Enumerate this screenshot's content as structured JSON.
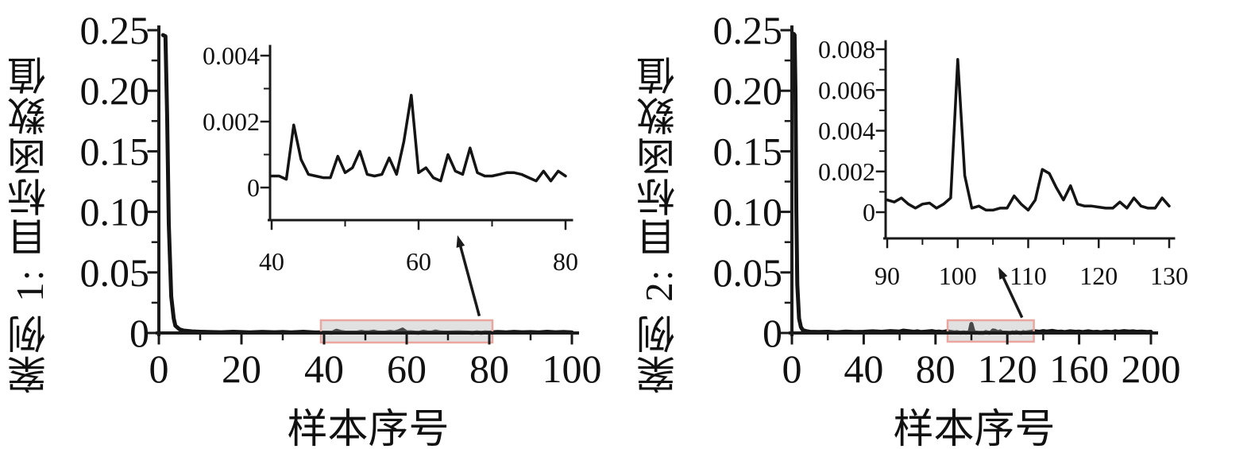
{
  "figure": {
    "background": "#ffffff",
    "curve_color": "#141414",
    "axis_color": "#1a1a1a",
    "highlight_fill_rgba": "rgba(168,168,168,0.35)",
    "highlight_border": "#eaa69f",
    "text_color": "#111111"
  },
  "chart_data": [
    {
      "id": "case1",
      "type": "line",
      "title": "",
      "ylabel": "案例 1: 目标函数值",
      "xlabel": "样本序号",
      "xlim": [
        0,
        100
      ],
      "ylim": [
        0,
        0.25
      ],
      "grid": false,
      "legend": null,
      "x_ticks": {
        "values": [
          0,
          20,
          40,
          60,
          80,
          100
        ],
        "labels": [
          "0",
          "20",
          "40",
          "60",
          "80",
          "100"
        ],
        "minor": [
          10,
          30,
          50,
          70,
          90
        ]
      },
      "y_ticks": {
        "values": [
          0,
          0.05,
          0.1,
          0.15,
          0.2,
          0.25
        ],
        "labels": [
          "0",
          "0.05",
          "0.10",
          "0.15",
          "0.20",
          "0.25"
        ],
        "minor": [
          0.025,
          0.075,
          0.125,
          0.175,
          0.225
        ]
      },
      "highlight_box": {
        "x_from": 40,
        "x_to": 80,
        "meaning": "region magnified in inset"
      },
      "zoom_arrow": {
        "from": "highlight-box",
        "to": "inset"
      },
      "series": [
        [
          1,
          0.246
        ],
        [
          1.6,
          0.245
        ],
        [
          2,
          0.18
        ],
        [
          2.4,
          0.09
        ],
        [
          3,
          0.03
        ],
        [
          3.6,
          0.012
        ],
        [
          4,
          0.006
        ],
        [
          5,
          0.003
        ],
        [
          6,
          0.002
        ],
        [
          8,
          0.0013
        ],
        [
          10,
          0.001
        ],
        [
          12,
          0.0008
        ],
        [
          15,
          0.0006
        ],
        [
          18,
          0.001
        ],
        [
          20,
          0.0007
        ],
        [
          22,
          0.0005
        ],
        [
          25,
          0.0009
        ],
        [
          28,
          0.0006
        ],
        [
          30,
          0.0008
        ],
        [
          32,
          0.0005
        ],
        [
          35,
          0.001
        ],
        [
          37,
          0.0006
        ],
        [
          38,
          0.0004
        ],
        [
          39,
          0.0005
        ],
        [
          40,
          0.00035
        ],
        [
          41,
          0.00035
        ],
        [
          42,
          0.00025
        ],
        [
          43,
          0.0019
        ],
        [
          44,
          0.00085
        ],
        [
          45,
          0.0004
        ],
        [
          46,
          0.00035
        ],
        [
          47,
          0.0003
        ],
        [
          48,
          0.0003
        ],
        [
          49,
          0.00095
        ],
        [
          50,
          0.00045
        ],
        [
          51,
          0.0006
        ],
        [
          52,
          0.0011
        ],
        [
          53,
          0.0004
        ],
        [
          54,
          0.00035
        ],
        [
          55,
          0.0004
        ],
        [
          56,
          0.0009
        ],
        [
          57,
          0.0004
        ],
        [
          58,
          0.0014
        ],
        [
          59,
          0.0028
        ],
        [
          60,
          0.00045
        ],
        [
          61,
          0.0006
        ],
        [
          62,
          0.0003
        ],
        [
          63,
          0.0002
        ],
        [
          64,
          0.001
        ],
        [
          65,
          0.0005
        ],
        [
          66,
          0.0004
        ],
        [
          67,
          0.0012
        ],
        [
          68,
          0.00045
        ],
        [
          69,
          0.00035
        ],
        [
          70,
          0.00035
        ],
        [
          71,
          0.0004
        ],
        [
          72,
          0.00045
        ],
        [
          73,
          0.00045
        ],
        [
          74,
          0.0004
        ],
        [
          75,
          0.0003
        ],
        [
          76,
          0.0002
        ],
        [
          77,
          0.0005
        ],
        [
          78,
          0.0002
        ],
        [
          79,
          0.0005
        ],
        [
          80,
          0.00035
        ],
        [
          82,
          0.0008
        ],
        [
          84,
          0.0005
        ],
        [
          86,
          0.0009
        ],
        [
          88,
          0.0006
        ],
        [
          90,
          0.0007
        ],
        [
          92,
          0.0005
        ],
        [
          94,
          0.001
        ],
        [
          96,
          0.0006
        ],
        [
          98,
          0.0008
        ],
        [
          100,
          0.0005
        ]
      ],
      "inset": {
        "xlim": [
          40,
          80
        ],
        "ylim": [
          0,
          0.004
        ],
        "x_ticks": {
          "values": [
            40,
            60,
            80
          ],
          "labels": [
            "40",
            "60",
            "80"
          ],
          "minor": [
            50,
            70
          ]
        },
        "y_ticks": {
          "values": [
            0,
            0.002,
            0.004
          ],
          "labels": [
            "0",
            "0.002",
            "0.004"
          ],
          "minor": [
            0.001,
            0.003
          ]
        },
        "series": [
          [
            40,
            0.00035
          ],
          [
            41,
            0.00035
          ],
          [
            42,
            0.00025
          ],
          [
            43,
            0.0019
          ],
          [
            44,
            0.00085
          ],
          [
            45,
            0.0004
          ],
          [
            46,
            0.00035
          ],
          [
            47,
            0.0003
          ],
          [
            48,
            0.0003
          ],
          [
            49,
            0.00095
          ],
          [
            50,
            0.00045
          ],
          [
            51,
            0.0006
          ],
          [
            52,
            0.0011
          ],
          [
            53,
            0.0004
          ],
          [
            54,
            0.00035
          ],
          [
            55,
            0.0004
          ],
          [
            56,
            0.0009
          ],
          [
            57,
            0.0004
          ],
          [
            58,
            0.0014
          ],
          [
            59,
            0.0028
          ],
          [
            60,
            0.00045
          ],
          [
            61,
            0.0006
          ],
          [
            62,
            0.0003
          ],
          [
            63,
            0.0002
          ],
          [
            64,
            0.001
          ],
          [
            65,
            0.0005
          ],
          [
            66,
            0.0004
          ],
          [
            67,
            0.0012
          ],
          [
            68,
            0.00045
          ],
          [
            69,
            0.00035
          ],
          [
            70,
            0.00035
          ],
          [
            71,
            0.0004
          ],
          [
            72,
            0.00045
          ],
          [
            73,
            0.00045
          ],
          [
            74,
            0.0004
          ],
          [
            75,
            0.0003
          ],
          [
            76,
            0.0002
          ],
          [
            77,
            0.0005
          ],
          [
            78,
            0.0002
          ],
          [
            79,
            0.0005
          ],
          [
            80,
            0.00035
          ]
        ]
      }
    },
    {
      "id": "case2",
      "type": "line",
      "title": "",
      "ylabel": "案例 2: 目标函数值",
      "xlabel": "样本序号",
      "xlim": [
        0,
        200
      ],
      "ylim": [
        0,
        0.25
      ],
      "grid": false,
      "legend": null,
      "x_ticks": {
        "values": [
          0,
          40,
          80,
          120,
          160,
          200
        ],
        "labels": [
          "0",
          "40",
          "80",
          "120",
          "160",
          "200"
        ],
        "minor": [
          20,
          60,
          100,
          140,
          180
        ]
      },
      "y_ticks": {
        "values": [
          0,
          0.05,
          0.1,
          0.15,
          0.2,
          0.25
        ],
        "labels": [
          "0",
          "0.05",
          "0.10",
          "0.15",
          "0.20",
          "0.25"
        ],
        "minor": [
          0.025,
          0.075,
          0.125,
          0.175,
          0.225
        ]
      },
      "highlight_box": {
        "x_from": 88.5,
        "x_to": 133,
        "meaning": "region magnified in inset"
      },
      "zoom_arrow": {
        "from": "highlight-box",
        "to": "inset"
      },
      "series": [
        [
          1,
          0.247
        ],
        [
          1.5,
          0.246
        ],
        [
          2,
          0.2
        ],
        [
          2.5,
          0.1
        ],
        [
          3,
          0.04
        ],
        [
          4,
          0.012
        ],
        [
          5,
          0.005
        ],
        [
          6,
          0.0025
        ],
        [
          8,
          0.0015
        ],
        [
          10,
          0.001
        ],
        [
          15,
          0.0008
        ],
        [
          20,
          0.001
        ],
        [
          25,
          0.0006
        ],
        [
          30,
          0.0012
        ],
        [
          35,
          0.0008
        ],
        [
          40,
          0.001
        ],
        [
          45,
          0.0014
        ],
        [
          50,
          0.001
        ],
        [
          55,
          0.0016
        ],
        [
          60,
          0.0012
        ],
        [
          62,
          0.002
        ],
        [
          65,
          0.0015
        ],
        [
          68,
          0.001
        ],
        [
          70,
          0.0014
        ],
        [
          72,
          0.0008
        ],
        [
          75,
          0.0012
        ],
        [
          78,
          0.0016
        ],
        [
          80,
          0.001
        ],
        [
          82,
          0.0012
        ],
        [
          84,
          0.0008
        ],
        [
          86,
          0.0014
        ],
        [
          88,
          0.001
        ],
        [
          90,
          0.0006
        ],
        [
          91,
          0.0005
        ],
        [
          92,
          0.0007
        ],
        [
          93,
          0.0004
        ],
        [
          94,
          0.0002
        ],
        [
          95,
          0.0004
        ],
        [
          96,
          0.00045
        ],
        [
          97,
          0.0002
        ],
        [
          98,
          0.0004
        ],
        [
          99,
          0.0007
        ],
        [
          100,
          0.0075
        ],
        [
          101,
          0.0018
        ],
        [
          102,
          0.0002
        ],
        [
          103,
          0.0003
        ],
        [
          104,
          0.0001
        ],
        [
          105,
          0.0001
        ],
        [
          106,
          0.0002
        ],
        [
          107,
          0.0002
        ],
        [
          108,
          0.0008
        ],
        [
          109,
          0.0004
        ],
        [
          110,
          0.0001
        ],
        [
          111,
          0.0006
        ],
        [
          112,
          0.0021
        ],
        [
          113,
          0.0019
        ],
        [
          114,
          0.0012
        ],
        [
          115,
          0.0006
        ],
        [
          116,
          0.0013
        ],
        [
          117,
          0.0004
        ],
        [
          118,
          0.0003
        ],
        [
          119,
          0.0003
        ],
        [
          120,
          0.00025
        ],
        [
          121,
          0.0002
        ],
        [
          122,
          0.0002
        ],
        [
          123,
          0.0005
        ],
        [
          124,
          0.0002
        ],
        [
          125,
          0.0007
        ],
        [
          126,
          0.0003
        ],
        [
          127,
          0.0002
        ],
        [
          128,
          0.0002
        ],
        [
          129,
          0.0007
        ],
        [
          130,
          0.0003
        ],
        [
          132,
          0.0008
        ],
        [
          135,
          0.0014
        ],
        [
          138,
          0.001
        ],
        [
          140,
          0.0016
        ],
        [
          142,
          0.0012
        ],
        [
          145,
          0.0018
        ],
        [
          148,
          0.001
        ],
        [
          150,
          0.0012
        ],
        [
          152,
          0.0008
        ],
        [
          155,
          0.0014
        ],
        [
          158,
          0.001
        ],
        [
          160,
          0.0012
        ],
        [
          162,
          0.0008
        ],
        [
          165,
          0.0014
        ],
        [
          168,
          0.0008
        ],
        [
          170,
          0.001
        ],
        [
          172,
          0.0006
        ],
        [
          175,
          0.0012
        ],
        [
          178,
          0.0008
        ],
        [
          180,
          0.0014
        ],
        [
          182,
          0.001
        ],
        [
          185,
          0.0016
        ],
        [
          188,
          0.0012
        ],
        [
          190,
          0.0014
        ],
        [
          192,
          0.001
        ],
        [
          195,
          0.0012
        ],
        [
          198,
          0.0008
        ],
        [
          200,
          0.001
        ]
      ],
      "inset": {
        "xlim": [
          90,
          130
        ],
        "ylim": [
          0,
          0.008
        ],
        "x_ticks": {
          "values": [
            90,
            100,
            110,
            120,
            130
          ],
          "labels": [
            "90",
            "100",
            "110",
            "120",
            "130"
          ],
          "minor": [
            95,
            105,
            115,
            125
          ]
        },
        "y_ticks": {
          "values": [
            0,
            0.002,
            0.004,
            0.006,
            0.008
          ],
          "labels": [
            "0",
            "0.002",
            "0.004",
            "0.006",
            "0.008"
          ],
          "minor": [
            0.001,
            0.003,
            0.005,
            0.007
          ]
        },
        "series": [
          [
            90,
            0.0006
          ],
          [
            91,
            0.0005
          ],
          [
            92,
            0.0007
          ],
          [
            93,
            0.0004
          ],
          [
            94,
            0.0002
          ],
          [
            95,
            0.0004
          ],
          [
            96,
            0.00045
          ],
          [
            97,
            0.0002
          ],
          [
            98,
            0.0004
          ],
          [
            99,
            0.0007
          ],
          [
            100,
            0.0075
          ],
          [
            101,
            0.0018
          ],
          [
            102,
            0.0002
          ],
          [
            103,
            0.0003
          ],
          [
            104,
            0.0001
          ],
          [
            105,
            0.0001
          ],
          [
            106,
            0.0002
          ],
          [
            107,
            0.0002
          ],
          [
            108,
            0.0008
          ],
          [
            109,
            0.0004
          ],
          [
            110,
            0.0001
          ],
          [
            111,
            0.0006
          ],
          [
            112,
            0.0021
          ],
          [
            113,
            0.0019
          ],
          [
            114,
            0.0012
          ],
          [
            115,
            0.0006
          ],
          [
            116,
            0.0013
          ],
          [
            117,
            0.0004
          ],
          [
            118,
            0.0003
          ],
          [
            119,
            0.0003
          ],
          [
            120,
            0.00025
          ],
          [
            121,
            0.0002
          ],
          [
            122,
            0.0002
          ],
          [
            123,
            0.0005
          ],
          [
            124,
            0.0002
          ],
          [
            125,
            0.0007
          ],
          [
            126,
            0.0003
          ],
          [
            127,
            0.0002
          ],
          [
            128,
            0.0002
          ],
          [
            129,
            0.0007
          ],
          [
            130,
            0.0003
          ]
        ]
      }
    }
  ]
}
